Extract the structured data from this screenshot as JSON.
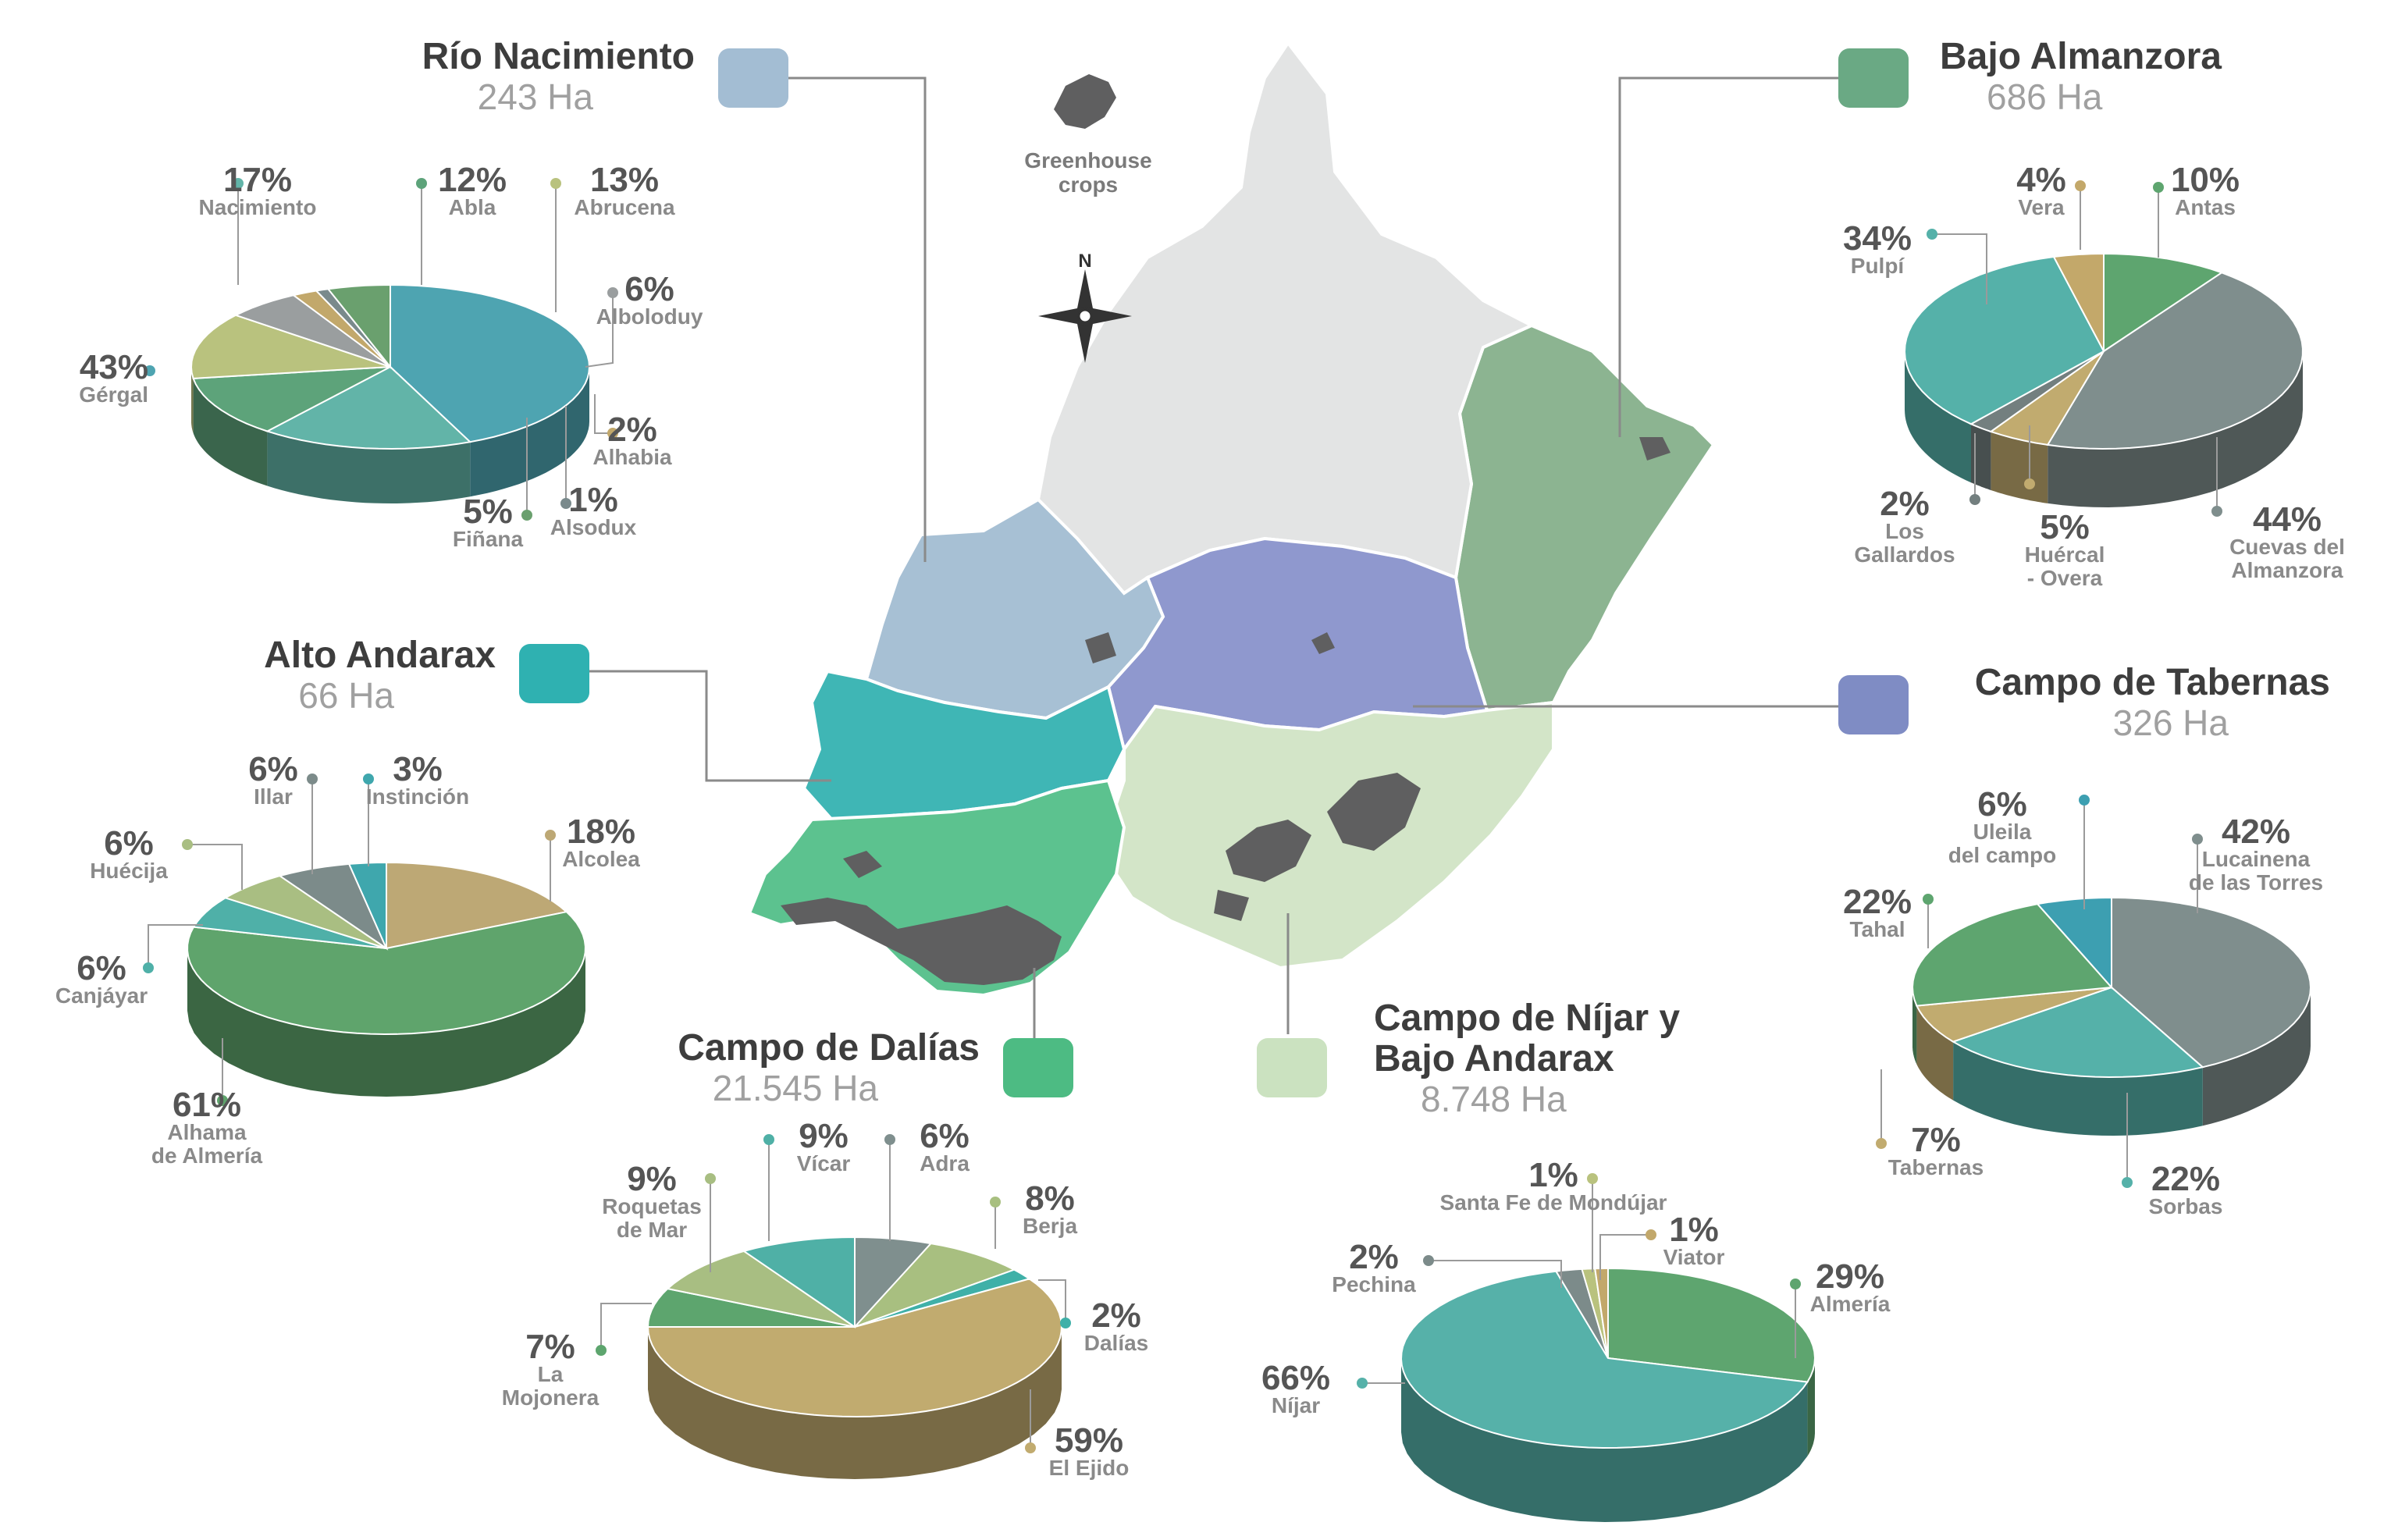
{
  "map": {
    "legend_label_line1": "Greenhouse",
    "legend_label_line2": "crops",
    "compass_label": "N"
  },
  "regions": [
    {
      "id": "rio-nacimiento",
      "name_lines": [
        "Río Nacimiento"
      ],
      "area": "243 Ha",
      "color": "#a3bdd3",
      "slices": [
        {
          "name": "Gérgal",
          "label_lines": [
            "Gérgal"
          ],
          "pct": 43,
          "color": "#4ea4b1"
        },
        {
          "name": "Nacimiento",
          "label_lines": [
            "Nacimiento"
          ],
          "pct": 17,
          "color": "#62b4a8"
        },
        {
          "name": "Abla",
          "label_lines": [
            "Abla"
          ],
          "pct": 12,
          "color": "#5da37a"
        },
        {
          "name": "Abrucena",
          "label_lines": [
            "Abrucena"
          ],
          "pct": 13,
          "color": "#b9c27e"
        },
        {
          "name": "Alboloduy",
          "label_lines": [
            "Alboloduy"
          ],
          "pct": 6,
          "color": "#9a9e9f"
        },
        {
          "name": "Alhabia",
          "label_lines": [
            "Alhabia"
          ],
          "pct": 2,
          "color": "#c2a86b"
        },
        {
          "name": "Alsodux",
          "label_lines": [
            "Alsodux"
          ],
          "pct": 1,
          "color": "#7a8a8c"
        },
        {
          "name": "Fiñana",
          "label_lines": [
            "Fiñana"
          ],
          "pct": 5,
          "color": "#6aa06e"
        }
      ]
    },
    {
      "id": "alto-andarax",
      "name_lines": [
        "Alto Andarax"
      ],
      "area": "66 Ha",
      "color": "#2fb1b1",
      "slices": [
        {
          "name": "Alcolea",
          "label_lines": [
            "Alcolea"
          ],
          "pct": 18,
          "color": "#bda875"
        },
        {
          "name": "Alhama de Almería",
          "label_lines": [
            "Alhama",
            "de Almería"
          ],
          "pct": 61,
          "color": "#5fa46c"
        },
        {
          "name": "Canjáyar",
          "label_lines": [
            "Canjáyar"
          ],
          "pct": 6,
          "color": "#4fb0a8"
        },
        {
          "name": "Huécija",
          "label_lines": [
            "Huécija"
          ],
          "pct": 6,
          "color": "#a9be82"
        },
        {
          "name": "Illar",
          "label_lines": [
            "Illar"
          ],
          "pct": 6,
          "color": "#7c8b8a"
        },
        {
          "name": "Instinción",
          "label_lines": [
            "Instinción"
          ],
          "pct": 3,
          "color": "#3fa7ad"
        }
      ]
    },
    {
      "id": "campo-de-dalias",
      "name_lines": [
        "Campo de Dalías"
      ],
      "area": "21.545 Ha",
      "color": "#4dbb83",
      "slices": [
        {
          "name": "Adra",
          "label_lines": [
            "Adra"
          ],
          "pct": 6,
          "color": "#7f8f8e"
        },
        {
          "name": "Berja",
          "label_lines": [
            "Berja"
          ],
          "pct": 8,
          "color": "#a8bf80"
        },
        {
          "name": "Dalías",
          "label_lines": [
            "Dalías"
          ],
          "pct": 2,
          "color": "#3fb0a8"
        },
        {
          "name": "El Ejido",
          "label_lines": [
            "El Ejido"
          ],
          "pct": 59,
          "color": "#c1ab6f"
        },
        {
          "name": "La Mojonera",
          "label_lines": [
            "La",
            "Mojonera"
          ],
          "pct": 7,
          "color": "#5da56e"
        },
        {
          "name": "Roquetas de Mar",
          "label_lines": [
            "Roquetas",
            "de Mar"
          ],
          "pct": 9,
          "color": "#a8be82"
        },
        {
          "name": "Vícar",
          "label_lines": [
            "Vícar"
          ],
          "pct": 9,
          "color": "#4fb0a6"
        }
      ]
    },
    {
      "id": "campo-de-nijar",
      "name_lines": [
        "Campo de Níjar y",
        "Bajo Andarax"
      ],
      "area": "8.748 Ha",
      "color": "#cbe2c0",
      "slices": [
        {
          "name": "Almería",
          "label_lines": [
            "Almería"
          ],
          "pct": 29,
          "color": "#5ea56f"
        },
        {
          "name": "Níjar",
          "label_lines": [
            "Níjar"
          ],
          "pct": 66,
          "color": "#56b1a9"
        },
        {
          "name": "Pechina",
          "label_lines": [
            "Pechina"
          ],
          "pct": 2,
          "color": "#7c8b8a"
        },
        {
          "name": "Santa Fe de Mondújar",
          "label_lines": [
            "Santa Fe de Mondújar"
          ],
          "pct": 1,
          "color": "#b9c27e"
        },
        {
          "name": "Viator",
          "label_lines": [
            "Viator"
          ],
          "pct": 1,
          "color": "#c2a86b"
        }
      ]
    },
    {
      "id": "bajo-almanzora",
      "name_lines": [
        "Bajo Almanzora"
      ],
      "area": "686 Ha",
      "color": "#6aa984",
      "slices": [
        {
          "name": "Antas",
          "label_lines": [
            "Antas"
          ],
          "pct": 10,
          "color": "#5ea56f"
        },
        {
          "name": "Cuevas del Almanzora",
          "label_lines": [
            "Cuevas del",
            "Almanzora"
          ],
          "pct": 44,
          "color": "#7f8e8d"
        },
        {
          "name": "Huércal - Overa",
          "label_lines": [
            "Huércal",
            "- Overa"
          ],
          "pct": 5,
          "color": "#c1ab6f"
        },
        {
          "name": "Los Gallardos",
          "label_lines": [
            "Los",
            "Gallardos"
          ],
          "pct": 2,
          "color": "#737f7f"
        },
        {
          "name": "Pulpí",
          "label_lines": [
            "Pulpí"
          ],
          "pct": 34,
          "color": "#55b1a9"
        },
        {
          "name": "Vera",
          "label_lines": [
            "Vera"
          ],
          "pct": 4,
          "color": "#c3a86a"
        }
      ]
    },
    {
      "id": "campo-de-tabernas",
      "name_lines": [
        "Campo de Tabernas"
      ],
      "area": "326 Ha",
      "color": "#7f8cc4",
      "slices": [
        {
          "name": "Lucainena de las Torres",
          "label_lines": [
            "Lucainena",
            "de las Torres"
          ],
          "pct": 42,
          "color": "#7f8e8d"
        },
        {
          "name": "Sorbas",
          "label_lines": [
            "Sorbas"
          ],
          "pct": 22,
          "color": "#55b1a9"
        },
        {
          "name": "Tabernas",
          "label_lines": [
            "Tabernas"
          ],
          "pct": 7,
          "color": "#c1ab6f"
        },
        {
          "name": "Tahal",
          "label_lines": [
            "Tahal"
          ],
          "pct": 22,
          "color": "#5ea56f"
        },
        {
          "name": "Uleila del campo",
          "label_lines": [
            "Uleila",
            "del campo"
          ],
          "pct": 6,
          "color": "#3d9fb1"
        }
      ]
    }
  ]
}
